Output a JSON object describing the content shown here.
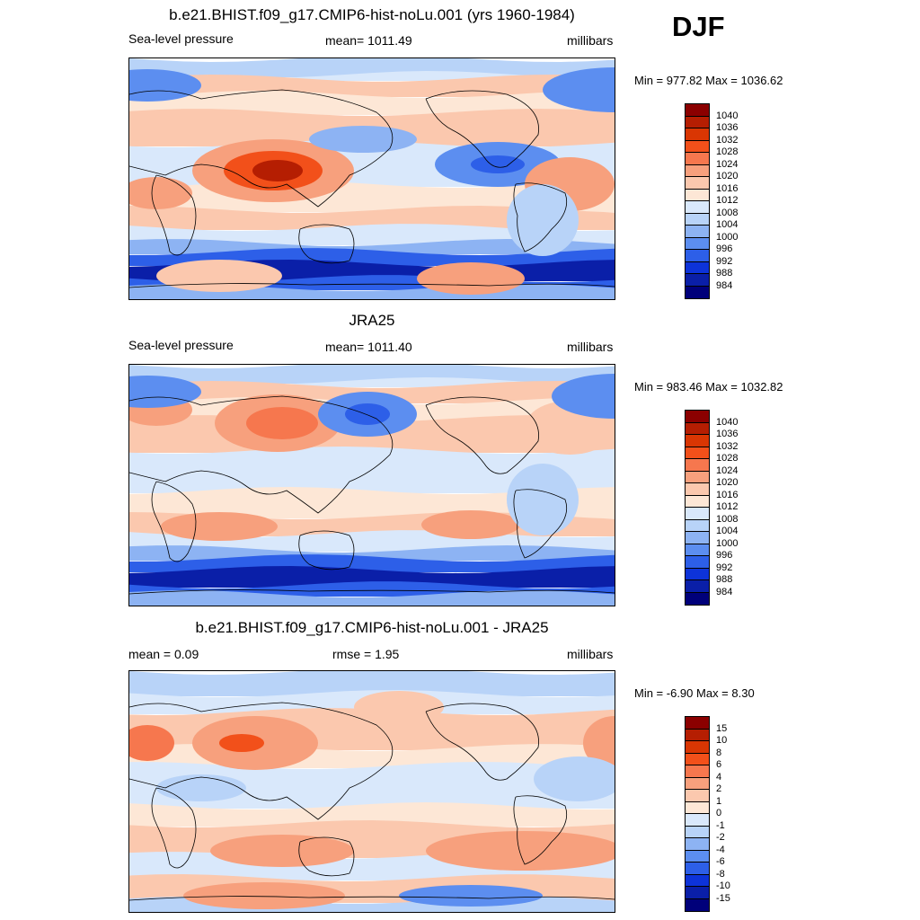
{
  "season": "DJF",
  "panels": [
    {
      "title": "b.e21.BHIST.f09_g17.CMIP6-hist-noLu.001 (yrs 1960-1984)",
      "left_label": "Sea-level pressure",
      "center_label": "mean= 1011.49",
      "right_label": "millibars",
      "minmax": "Min = 977.82 Max = 1036.62",
      "scale": "abs"
    },
    {
      "title": "JRA25",
      "left_label": "Sea-level pressure",
      "center_label": "mean= 1011.40",
      "right_label": "millibars",
      "minmax": "Min = 983.46 Max = 1032.82",
      "scale": "abs"
    },
    {
      "title": "b.e21.BHIST.f09_g17.CMIP6-hist-noLu.001 - JRA25",
      "left_label": "mean =   0.09",
      "center_label": "rmse =   1.95",
      "right_label": "millibars",
      "minmax": "Min =  -6.90 Max =   8.30",
      "scale": "diff"
    }
  ],
  "colorbars": {
    "abs": {
      "labels": [
        "1040",
        "1036",
        "1032",
        "1028",
        "1024",
        "1020",
        "1016",
        "1012",
        "1008",
        "1004",
        "1000",
        "996",
        "992",
        "988",
        "984"
      ],
      "colors": [
        "#8b0000",
        "#b51e02",
        "#d93603",
        "#f2501a",
        "#f6774e",
        "#f7a07d",
        "#fbc8ae",
        "#fde7d6",
        "#d9e8fb",
        "#b8d3f8",
        "#8db3f3",
        "#5c8ef0",
        "#2d5fe8",
        "#0d33d9",
        "#0a1fa8",
        "#00007a"
      ]
    },
    "diff": {
      "labels": [
        "15",
        "10",
        "8",
        "6",
        "4",
        "2",
        "1",
        "0",
        "-1",
        "-2",
        "-4",
        "-6",
        "-8",
        "-10",
        "-15"
      ],
      "colors": [
        "#8b0000",
        "#b51e02",
        "#d93603",
        "#f2501a",
        "#f6774e",
        "#f7a07d",
        "#fbc8ae",
        "#fde7d6",
        "#d9e8fb",
        "#b8d3f8",
        "#8db3f3",
        "#5c8ef0",
        "#2d5fe8",
        "#0d33d9",
        "#0a1fa8",
        "#00007a"
      ]
    }
  }
}
